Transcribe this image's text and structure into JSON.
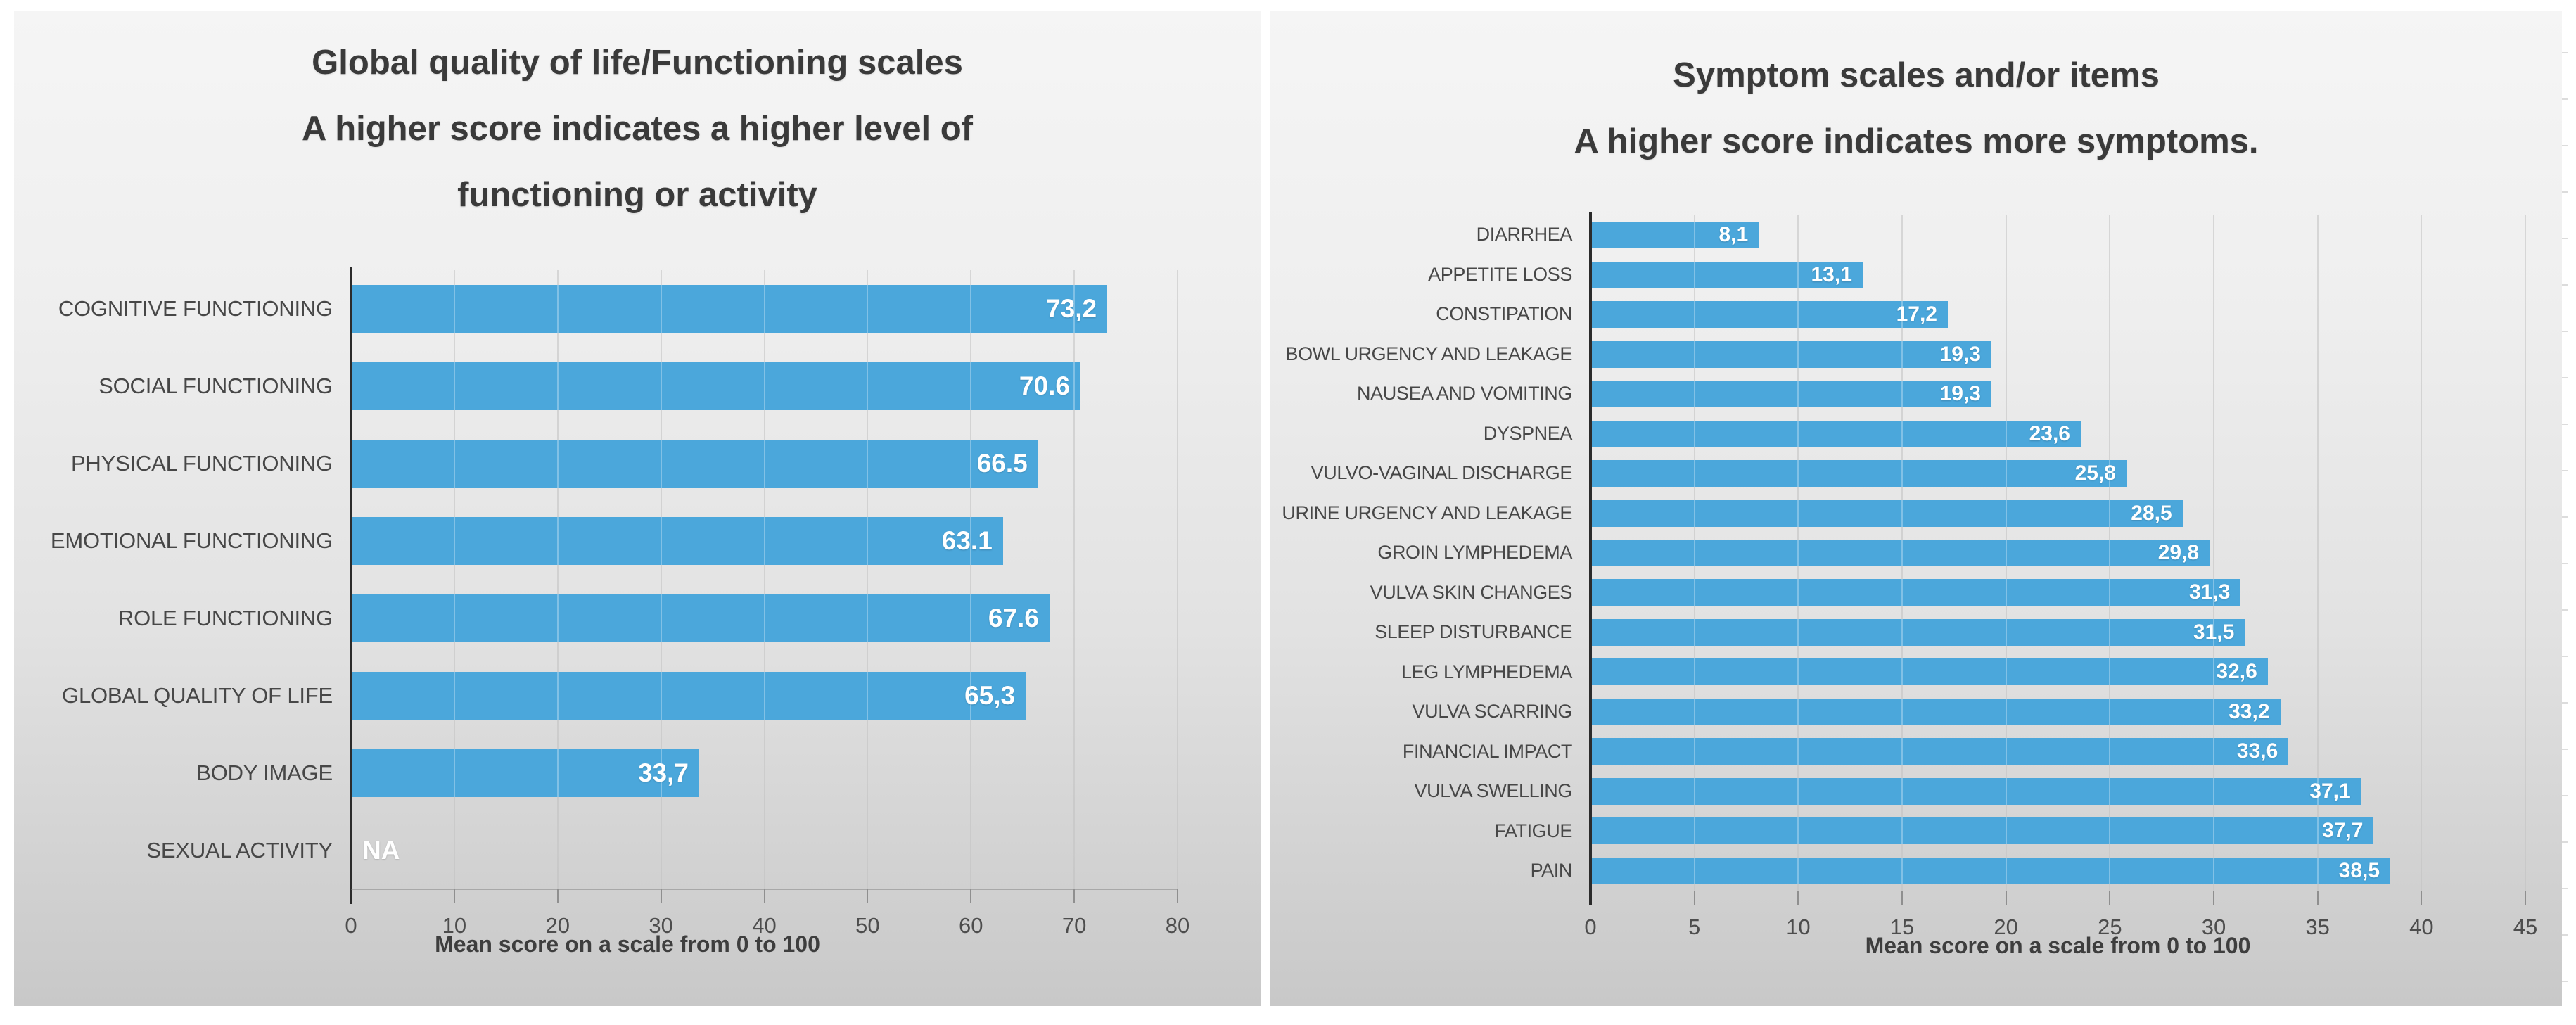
{
  "chart_data": [
    {
      "type": "bar",
      "orientation": "horizontal",
      "title_lines": [
        "Global quality of life/Functioning scales",
        "A higher score indicates a higher level of",
        "functioning or activity"
      ],
      "xlabel": "Mean score on a scale from 0 to 100",
      "xlim": [
        0,
        80
      ],
      "x_ticks": [
        0,
        10,
        20,
        30,
        40,
        50,
        60,
        70,
        80
      ],
      "grid": true,
      "legend": false,
      "bar_color": "#4BA7DB",
      "categories": [
        "COGNITIVE FUNCTIONING",
        "SOCIAL FUNCTIONING",
        "PHYSICAL FUNCTIONING",
        "EMOTIONAL FUNCTIONING",
        "ROLE FUNCTIONING",
        "GLOBAL QUALITY OF LIFE",
        "BODY IMAGE",
        "SEXUAL ACTIVITY"
      ],
      "values": [
        73.2,
        70.6,
        66.5,
        63.1,
        67.6,
        65.3,
        33.7,
        null
      ],
      "value_labels": [
        "73,2",
        "70.6",
        "66.5",
        "63.1",
        "67.6",
        "65,3",
        "33,7",
        "NA"
      ]
    },
    {
      "type": "bar",
      "orientation": "horizontal",
      "title_lines": [
        "Symptom scales and/or items",
        "A higher score indicates more symptoms."
      ],
      "xlabel": "Mean score on a scale from 0 to 100",
      "xlim": [
        0,
        45
      ],
      "x_ticks": [
        0,
        5,
        10,
        15,
        20,
        25,
        30,
        35,
        40,
        45
      ],
      "grid": true,
      "legend": false,
      "bar_color": "#4BA7DB",
      "categories": [
        "DIARRHEA",
        "APPETITE LOSS",
        "CONSTIPATION",
        "BOWL URGENCY AND LEAKAGE",
        "NAUSEA AND VOMITING",
        "DYSPNEA",
        "VULVO-VAGINAL DISCHARGE",
        "URINE URGENCY AND LEAKAGE",
        "GROIN LYMPHEDEMA",
        "VULVA SKIN CHANGES",
        "SLEEP DISTURBANCE",
        "LEG LYMPHEDEMA",
        "VULVA SCARRING",
        "FINANCIAL IMPACT",
        "VULVA SWELLING",
        "FATIGUE",
        "PAIN"
      ],
      "values": [
        8.1,
        13.1,
        17.2,
        19.3,
        19.3,
        23.6,
        25.8,
        28.5,
        29.8,
        31.3,
        31.5,
        32.6,
        33.2,
        33.6,
        37.1,
        37.7,
        38.5
      ],
      "value_labels": [
        "8,1",
        "13,1",
        "17,2",
        "19,3",
        "19,3",
        "23,6",
        "25,8",
        "28,5",
        "29,8",
        "31,3",
        "31,5",
        "32,6",
        "33,2",
        "33,6",
        "37,1",
        "37,7",
        "38,5"
      ]
    }
  ]
}
